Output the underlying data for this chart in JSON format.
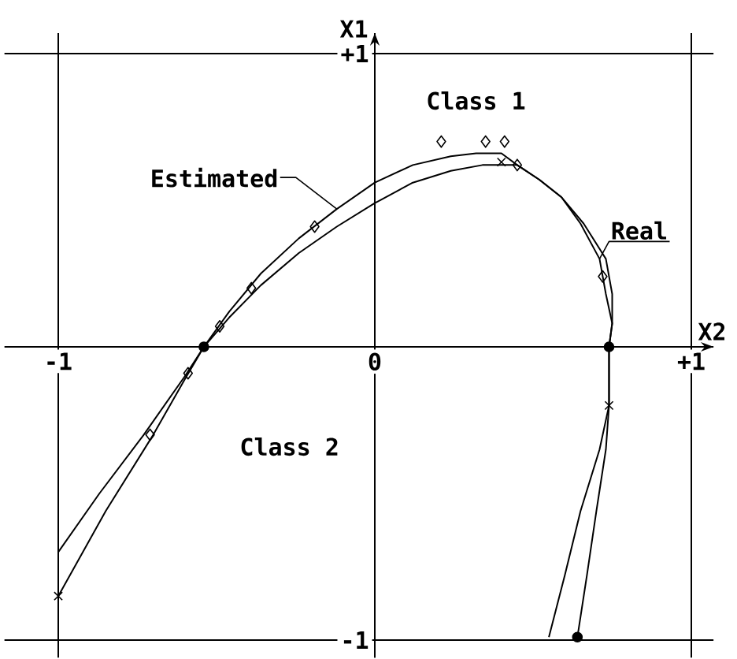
{
  "chart_data": {
    "type": "line",
    "xlabel": "X2",
    "ylabel": "X1",
    "xlim": [
      -1.17,
      1.07
    ],
    "ylim": [
      -1.06,
      1.07
    ],
    "xticks": [
      -1,
      0,
      {
        "value": 1,
        "label": "+1"
      }
    ],
    "yticks": [
      -1,
      {
        "value": 1,
        "label": "+1"
      }
    ],
    "grid": true,
    "annotations": [
      "Class 1",
      "Class 2"
    ],
    "series": [
      {
        "name": "Estimated",
        "color": "#000000",
        "marker": "none",
        "x": [
          -1.0,
          -0.87,
          -0.73,
          -0.6,
          -0.54,
          -0.46,
          -0.36,
          -0.24,
          -0.12,
          0.0,
          0.12,
          0.24,
          0.32,
          0.4,
          0.45,
          0.52,
          0.59,
          0.66,
          0.73,
          0.75,
          0.75,
          0.74,
          0.74,
          0.71,
          0.65,
          0.6,
          0.55
        ],
        "values": [
          -0.7,
          -0.5,
          -0.3,
          -0.1,
          0.0,
          0.12,
          0.25,
          0.37,
          0.47,
          0.56,
          0.62,
          0.65,
          0.66,
          0.66,
          0.62,
          0.57,
          0.51,
          0.42,
          0.3,
          0.18,
          0.08,
          0.0,
          -0.2,
          -0.35,
          -0.56,
          -0.78,
          -0.99
        ]
      },
      {
        "name": "Real",
        "color": "#000000",
        "marker": "none",
        "x": [
          -1.0,
          -0.85,
          -0.7,
          -0.6,
          -0.54,
          -0.46,
          -0.36,
          -0.24,
          -0.12,
          0.0,
          0.12,
          0.24,
          0.34,
          0.4,
          0.45,
          0.52,
          0.59,
          0.65,
          0.71,
          0.73,
          0.75,
          0.74,
          0.74,
          0.73,
          0.7,
          0.67,
          0.64
        ],
        "values": [
          -0.85,
          -0.56,
          -0.3,
          -0.11,
          0.0,
          0.1,
          0.21,
          0.32,
          0.41,
          0.49,
          0.56,
          0.6,
          0.62,
          0.62,
          0.62,
          0.57,
          0.51,
          0.42,
          0.3,
          0.18,
          0.08,
          0.0,
          -0.2,
          -0.35,
          -0.56,
          -0.78,
          -0.99
        ]
      },
      {
        "type": "scatter",
        "color": "#000000",
        "marker": "diamond",
        "x": [
          -0.71,
          -0.59,
          -0.49,
          -0.39,
          -0.19,
          0.21,
          0.35,
          0.41,
          0.45,
          0.72
        ],
        "values": [
          -0.3,
          -0.09,
          0.07,
          0.2,
          0.41,
          0.7,
          0.7,
          0.7,
          0.62,
          0.24
        ]
      },
      {
        "type": "scatter",
        "color": "#000000",
        "marker": "cross",
        "x": [
          -1.0,
          0.4,
          0.74
        ],
        "values": [
          -0.85,
          0.63,
          -0.2
        ]
      },
      {
        "type": "scatter",
        "color": "#000000",
        "marker": "circle",
        "x": [
          -0.54,
          0.74,
          0.64
        ],
        "values": [
          0.0,
          0.0,
          -0.99
        ]
      }
    ]
  }
}
